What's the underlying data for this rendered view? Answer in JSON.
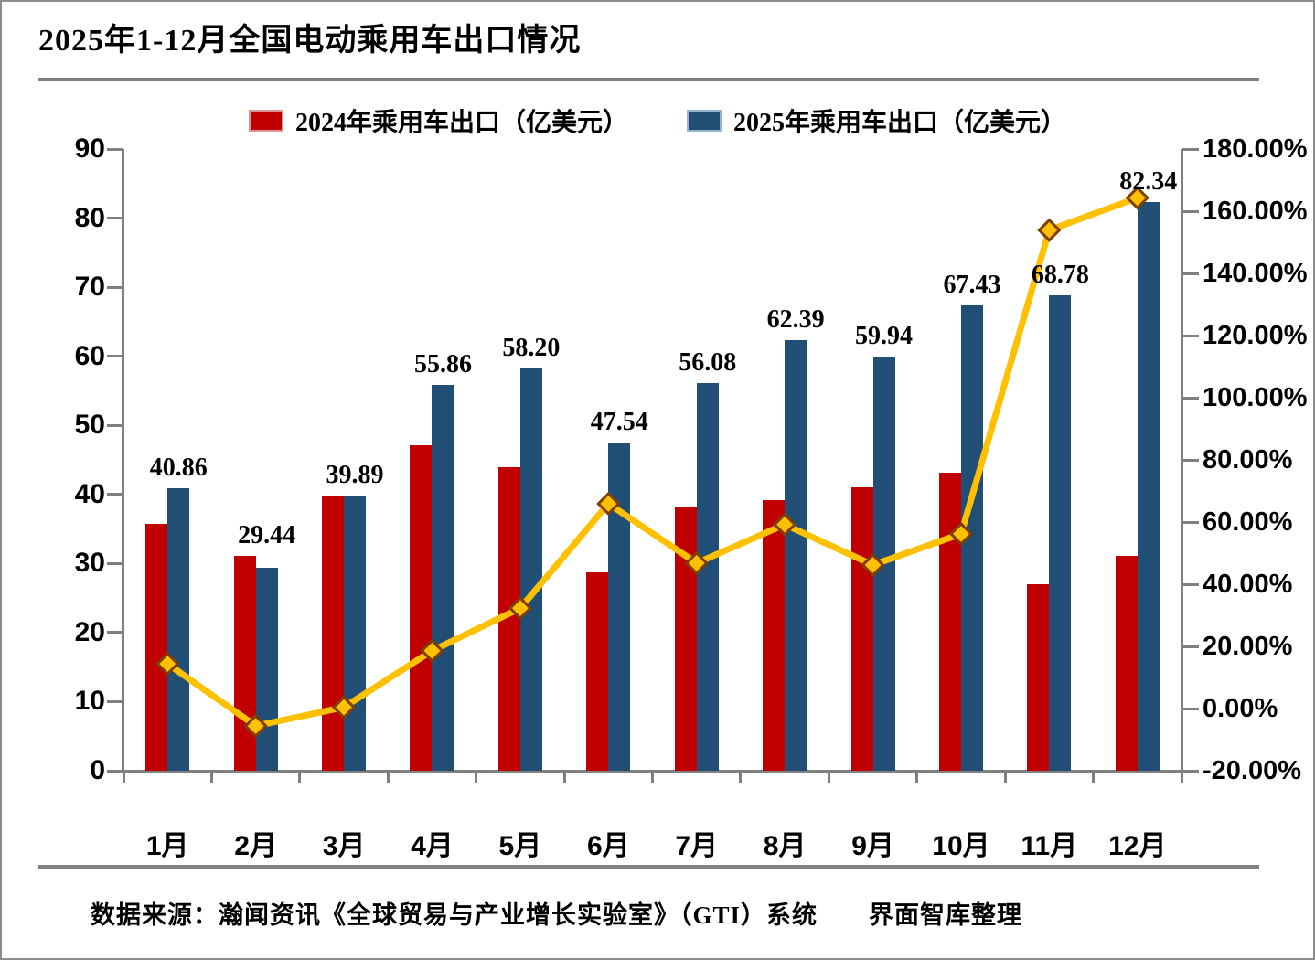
{
  "title": "2025年1-12月全国电动乘用车出口情况",
  "source_note": "数据来源：瀚闻资讯《全球贸易与产业增长实验室》（GTI）系统　　界面智库整理",
  "colors": {
    "bar_2024": "#C00000",
    "bar_2025": "#204E74",
    "growth_line": "#FFC000",
    "marker_border": "#7F3F00",
    "axis_gray": "#808080"
  },
  "legend": {
    "items": [
      {
        "label": "2024年乘用车出口（亿美元）",
        "swatch_color": "#C00000"
      },
      {
        "label": "2025年乘用车出口（亿美元）",
        "swatch_color": "#204E74"
      }
    ]
  },
  "chart_data": {
    "type": "bar",
    "subtype": "grouped-bars-with-line-overlay",
    "title": "2025年1-12月全国电动乘用车出口情况",
    "categories": [
      "1月",
      "2月",
      "3月",
      "4月",
      "5月",
      "6月",
      "7月",
      "8月",
      "9月",
      "10月",
      "11月",
      "12月"
    ],
    "series": [
      {
        "name": "2024年乘用车出口（亿美元）",
        "type": "bar",
        "axis": "left",
        "color": "#C00000",
        "values": [
          35.7,
          31.1,
          39.7,
          47.1,
          44.0,
          28.7,
          38.2,
          39.2,
          41.0,
          43.2,
          27.0,
          31.1
        ],
        "estimated": true
      },
      {
        "name": "2025年乘用车出口（亿美元）",
        "type": "bar",
        "axis": "left",
        "color": "#204E74",
        "values": [
          40.86,
          29.44,
          39.89,
          55.86,
          58.2,
          47.54,
          56.08,
          62.39,
          59.94,
          67.43,
          68.78,
          82.34
        ],
        "data_labels": [
          "40.86",
          "29.44",
          "39.89",
          "55.86",
          "58.20",
          "47.54",
          "56.08",
          "62.39",
          "59.94",
          "67.43",
          "68.78",
          "82.34"
        ]
      },
      {
        "name": "",
        "type": "line",
        "axis": "right",
        "color": "#FFC000",
        "marker": "diamond",
        "marker_border": "#7F3F00",
        "values": [
          14.4,
          -5.6,
          0.4,
          18.6,
          32.3,
          65.9,
          46.8,
          59.2,
          46.2,
          56.2,
          153.9,
          164.3
        ],
        "estimated": true,
        "legend_entry": false
      }
    ],
    "left_axis": {
      "min": 0,
      "max": 90,
      "step": 10,
      "tick_labels": [
        "0",
        "10",
        "20",
        "30",
        "40",
        "50",
        "60",
        "70",
        "80",
        "90"
      ]
    },
    "right_axis": {
      "min": -20,
      "max": 180,
      "step": 20,
      "tick_labels": [
        "-20.00%",
        "0.00%",
        "20.00%",
        "40.00%",
        "60.00%",
        "80.00%",
        "100.00%",
        "120.00%",
        "140.00%",
        "160.00%",
        "180.00%"
      ]
    },
    "grid": false,
    "legend_position": "top"
  }
}
